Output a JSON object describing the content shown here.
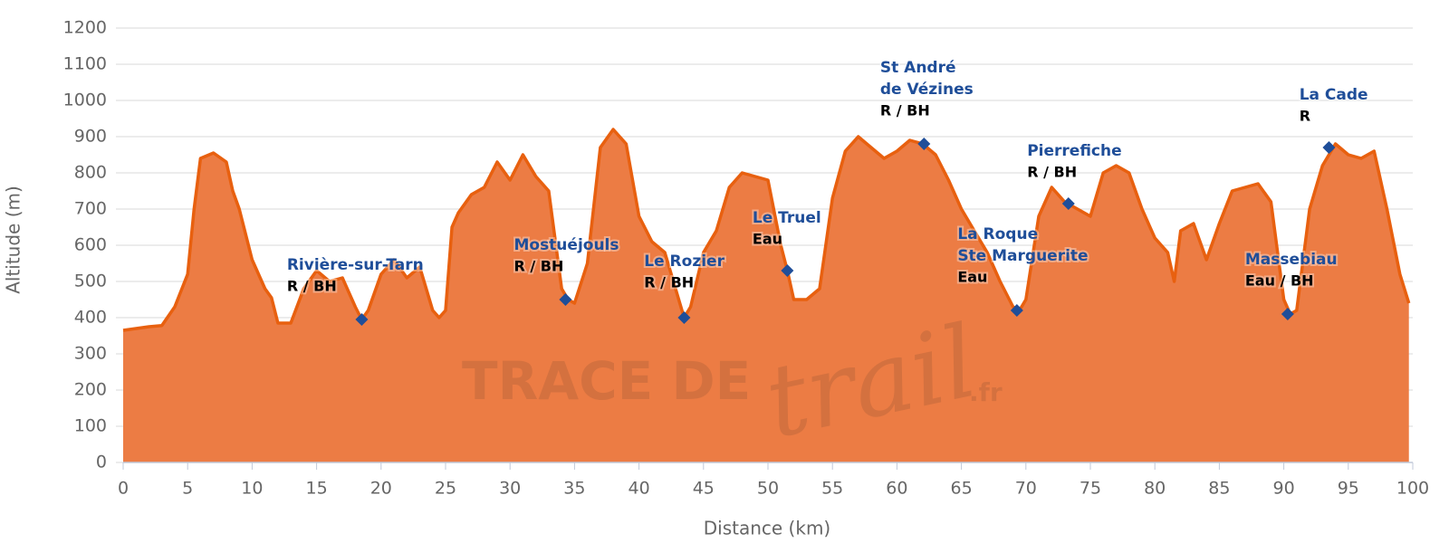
{
  "chart_data": {
    "type": "area",
    "x_label": "Distance (km)",
    "y_label": "Altitude (m)",
    "x": [
      0,
      1,
      2,
      3,
      4,
      5,
      5.5,
      6,
      7,
      8,
      8.5,
      9,
      10,
      11,
      11.5,
      12,
      13,
      14,
      15,
      16,
      17,
      18,
      18.5,
      19,
      20,
      21,
      22,
      23,
      24,
      24.5,
      25,
      25.5,
      26,
      27,
      28,
      29,
      30,
      31,
      32,
      33,
      34,
      34.5,
      35,
      36,
      37,
      38,
      39,
      40,
      41,
      42,
      43,
      43.5,
      44,
      45,
      46,
      47,
      48,
      49,
      50,
      51,
      51.5,
      52,
      53,
      54,
      55,
      56,
      57,
      58,
      59,
      60,
      61,
      62,
      63,
      64,
      65,
      66,
      67,
      68,
      69,
      69.5,
      70,
      71,
      72,
      73,
      74,
      75,
      76,
      77,
      78,
      79,
      80,
      81,
      81.5,
      82,
      83,
      84,
      85,
      86,
      87,
      88,
      89,
      90,
      90.5,
      91,
      92,
      93,
      94,
      95,
      96,
      97,
      98,
      99,
      99.7
    ],
    "series": [
      {
        "name": "Altitude",
        "color": "#ec7c44",
        "line_color": "#e8600f",
        "values": [
          365,
          370,
          375,
          378,
          430,
          520,
          700,
          840,
          855,
          830,
          750,
          700,
          560,
          480,
          455,
          385,
          385,
          480,
          530,
          500,
          510,
          430,
          395,
          420,
          520,
          560,
          510,
          540,
          420,
          400,
          420,
          650,
          690,
          740,
          760,
          830,
          780,
          850,
          790,
          750,
          480,
          450,
          440,
          550,
          870,
          920,
          880,
          680,
          610,
          580,
          460,
          400,
          430,
          580,
          640,
          760,
          800,
          790,
          780,
          600,
          530,
          450,
          450,
          480,
          730,
          860,
          900,
          870,
          840,
          860,
          890,
          880,
          850,
          780,
          700,
          640,
          580,
          500,
          430,
          420,
          450,
          680,
          760,
          720,
          700,
          680,
          800,
          820,
          800,
          700,
          620,
          580,
          500,
          640,
          660,
          560,
          660,
          750,
          760,
          770,
          720,
          450,
          410,
          420,
          700,
          820,
          880,
          850,
          840,
          860,
          700,
          520,
          440
        ]
      }
    ],
    "waypoints": [
      {
        "name": [
          "Rivière-sur-Tarn"
        ],
        "info": "R / BH",
        "distance": 18.5,
        "altitude": 395
      },
      {
        "name": [
          "Mostuéjouls"
        ],
        "info": "R / BH",
        "distance": 34.3,
        "altitude": 450
      },
      {
        "name": [
          "Le Rozier"
        ],
        "info": "R / BH",
        "distance": 43.5,
        "altitude": 400
      },
      {
        "name": [
          "Le Truel"
        ],
        "info": "Eau",
        "distance": 51.5,
        "altitude": 530
      },
      {
        "name": [
          "St André",
          "de Vézines"
        ],
        "info": "R / BH",
        "distance": 62.1,
        "altitude": 880
      },
      {
        "name": [
          "La Roque",
          "Ste Marguerite"
        ],
        "info": "Eau",
        "distance": 69.3,
        "altitude": 420
      },
      {
        "name": [
          "Pierrefiche"
        ],
        "info": "R / BH",
        "distance": 73.3,
        "altitude": 715
      },
      {
        "name": [
          "Massebiau"
        ],
        "info": "Eau / BH",
        "distance": 90.3,
        "altitude": 410
      },
      {
        "name": [
          "La Cade"
        ],
        "info": "R",
        "distance": 93.5,
        "altitude": 870
      }
    ],
    "marker_color": "#1f4e99",
    "watermark": {
      "main": "TRACE DE",
      "script": "trail",
      "suffix": ".fr"
    },
    "xlim": [
      0,
      100
    ],
    "xticks": [
      0,
      5,
      10,
      15,
      20,
      25,
      30,
      35,
      40,
      45,
      50,
      55,
      60,
      65,
      70,
      75,
      80,
      85,
      90,
      95,
      100
    ],
    "ylim": [
      0,
      1200
    ],
    "yticks": [
      0,
      100,
      200,
      300,
      400,
      500,
      600,
      700,
      800,
      900,
      1000,
      1100,
      1200
    ],
    "grid": true
  }
}
